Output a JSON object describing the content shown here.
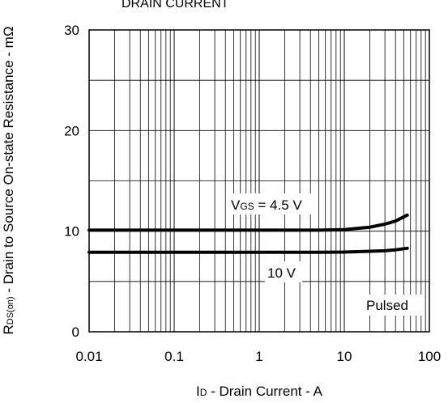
{
  "chart_data": {
    "type": "line",
    "title": "DRAIN CURRENT",
    "xlabel": {
      "sym": "I",
      "sub": "D",
      "rest": " - Drain Current - A"
    },
    "ylabel": {
      "sym": "R",
      "sub": "DS(on)",
      "rest": " - Drain to Source On-state Resistance - mΩ"
    },
    "x_scale": "log",
    "xlim": [
      0.01,
      100
    ],
    "ylim": [
      0,
      30
    ],
    "x_ticks": [
      "0.01",
      "0.1",
      "1",
      "10",
      "100"
    ],
    "y_ticks": [
      "0",
      "10",
      "20",
      "30"
    ],
    "grid": true,
    "series": [
      {
        "name": "VGS = 4.5 V",
        "label": {
          "sym": "V",
          "sub": "GS",
          "rest": " = 4.5 V"
        },
        "x": [
          0.01,
          0.1,
          1,
          5,
          10,
          20,
          30,
          40,
          55
        ],
        "y": [
          10.1,
          10.1,
          10.1,
          10.1,
          10.15,
          10.4,
          10.7,
          11.0,
          11.6
        ]
      },
      {
        "name": "10 V",
        "label": {
          "sym": "",
          "sub": "",
          "rest": "10 V"
        },
        "x": [
          0.01,
          0.1,
          1,
          5,
          10,
          20,
          30,
          40,
          55
        ],
        "y": [
          7.9,
          7.9,
          7.9,
          7.9,
          7.92,
          8.0,
          8.05,
          8.15,
          8.3
        ]
      }
    ],
    "annotations": [
      "Pulsed"
    ]
  }
}
